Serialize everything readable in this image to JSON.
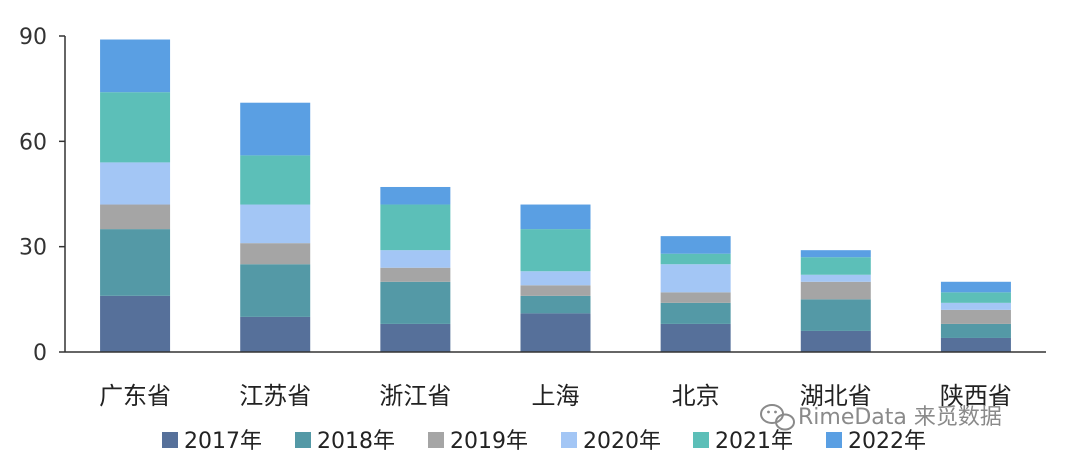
{
  "chart_data": {
    "type": "bar",
    "stacked": true,
    "categories": [
      "广东省",
      "江苏省",
      "浙江省",
      "上海",
      "北京",
      "湖北省",
      "陕西省"
    ],
    "series": [
      {
        "name": "2017年",
        "color": "#56709A",
        "values": [
          16,
          10,
          8,
          11,
          8,
          6,
          4
        ]
      },
      {
        "name": "2018年",
        "color": "#5499A6",
        "values": [
          19,
          15,
          12,
          5,
          6,
          9,
          4
        ]
      },
      {
        "name": "2019年",
        "color": "#A5A5A5",
        "values": [
          7,
          6,
          4,
          3,
          3,
          5,
          4
        ]
      },
      {
        "name": "2020年",
        "color": "#A3C6F5",
        "values": [
          12,
          11,
          5,
          4,
          8,
          2,
          2
        ]
      },
      {
        "name": "2021年",
        "color": "#5CBFB8",
        "values": [
          20,
          14,
          13,
          12,
          3,
          5,
          3
        ]
      },
      {
        "name": "2022年",
        "color": "#5A9FE3",
        "values": [
          15,
          15,
          5,
          7,
          5,
          2,
          3
        ]
      }
    ],
    "yticks": [
      0,
      30,
      60,
      90
    ],
    "ylim": [
      0,
      90
    ],
    "grid": false,
    "legend_position": "bottom"
  },
  "watermark": {
    "text": "RimeData 来觅数据",
    "icon": "wechat-icon"
  }
}
